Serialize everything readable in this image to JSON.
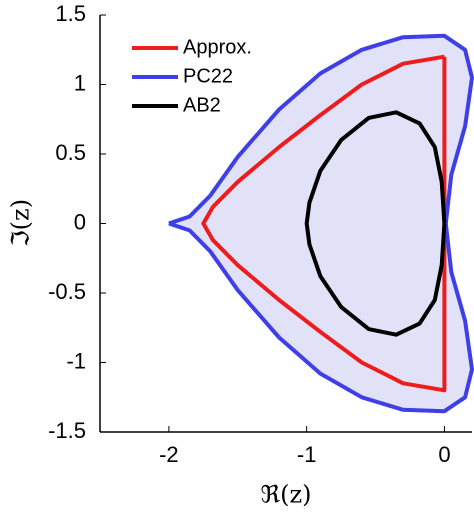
{
  "chart_data": {
    "type": "line",
    "xlabel": "ℜ(z)",
    "ylabel": "ℑ(z)",
    "xlim": [
      -2.5,
      0.2
    ],
    "ylim": [
      -1.5,
      1.5
    ],
    "xticks": [
      -2,
      -1,
      0
    ],
    "yticks": [
      -1.5,
      -1,
      -0.5,
      0,
      0.5,
      1,
      1.5
    ],
    "legend": "upper left",
    "series": [
      {
        "name": "Approx.",
        "color": "#ee1c1c",
        "x": [
          0,
          -0.3,
          -0.6,
          -0.9,
          -1.2,
          -1.5,
          -1.68,
          -1.75,
          -1.68,
          -1.5,
          -1.2,
          -0.9,
          -0.6,
          -0.3,
          0,
          0
        ],
        "values": [
          1.2,
          1.15,
          1.0,
          0.78,
          0.55,
          0.3,
          0.12,
          0,
          -0.12,
          -0.3,
          -0.55,
          -0.78,
          -1.0,
          -1.15,
          -1.2,
          1.2
        ]
      },
      {
        "name": "PC22",
        "color": "#3f3fe8",
        "fill": "#e1e1f7",
        "x": [
          -2,
          -1.85,
          -1.7,
          -1.5,
          -1.2,
          -0.9,
          -0.6,
          -0.3,
          0,
          0.15,
          0.2,
          0.15,
          0.05,
          0.01,
          0.05,
          0.15,
          0.2,
          0.15,
          0,
          -0.3,
          -0.6,
          -0.9,
          -1.2,
          -1.5,
          -1.7,
          -1.85,
          -2
        ],
        "values": [
          0,
          0.05,
          0.2,
          0.48,
          0.82,
          1.08,
          1.25,
          1.34,
          1.35,
          1.25,
          1.05,
          0.7,
          0.35,
          0,
          -0.35,
          -0.7,
          -1.05,
          -1.25,
          -1.35,
          -1.34,
          -1.25,
          -1.08,
          -0.82,
          -0.48,
          -0.2,
          -0.05,
          0
        ]
      },
      {
        "name": "AB2",
        "color": "#000000",
        "x": [
          0,
          -0.02,
          -0.07,
          -0.18,
          -0.35,
          -0.55,
          -0.75,
          -0.9,
          -0.98,
          -1,
          -0.98,
          -0.9,
          -0.75,
          -0.55,
          -0.35,
          -0.18,
          -0.07,
          -0.02,
          0
        ],
        "values": [
          0,
          0.3,
          0.55,
          0.72,
          0.8,
          0.76,
          0.6,
          0.38,
          0.15,
          0,
          -0.15,
          -0.38,
          -0.6,
          -0.76,
          -0.8,
          -0.72,
          -0.55,
          -0.3,
          0
        ]
      }
    ]
  }
}
